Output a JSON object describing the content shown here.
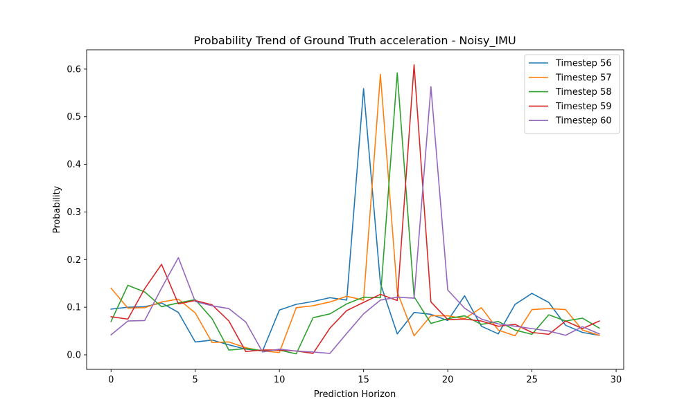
{
  "chart_data": {
    "type": "line",
    "title": "Probability Trend of Ground Truth acceleration - Noisy_IMU",
    "xlabel": "Prediction Horizon",
    "ylabel": "Probability",
    "xlim": [
      -1.45,
      30.45
    ],
    "ylim": [
      -0.0305,
      0.6405
    ],
    "xticks": [
      0,
      5,
      10,
      15,
      20,
      25,
      30
    ],
    "yticks": [
      0.0,
      0.1,
      0.2,
      0.3,
      0.4,
      0.5,
      0.6
    ],
    "grid": false,
    "legend_position": "top-right",
    "x": [
      0,
      1,
      2,
      3,
      4,
      5,
      6,
      7,
      8,
      9,
      10,
      11,
      12,
      13,
      14,
      15,
      16,
      17,
      18,
      19,
      20,
      21,
      22,
      23,
      24,
      25,
      26,
      27,
      28,
      29
    ],
    "series": [
      {
        "name": "Timestep 56",
        "color": "#1f77b4",
        "values": [
          0.096,
          0.1,
          0.101,
          0.109,
          0.089,
          0.027,
          0.031,
          0.021,
          0.012,
          0.008,
          0.094,
          0.106,
          0.112,
          0.12,
          0.115,
          0.559,
          0.15,
          0.044,
          0.089,
          0.085,
          0.072,
          0.124,
          0.06,
          0.044,
          0.106,
          0.129,
          0.11,
          0.062,
          0.047,
          0.041
        ]
      },
      {
        "name": "Timestep 57",
        "color": "#ff7f0e",
        "values": [
          0.14,
          0.098,
          0.099,
          0.111,
          0.117,
          0.088,
          0.026,
          0.027,
          0.015,
          0.008,
          0.005,
          0.099,
          0.103,
          0.111,
          0.123,
          0.115,
          0.589,
          0.132,
          0.04,
          0.082,
          0.082,
          0.076,
          0.099,
          0.052,
          0.04,
          0.095,
          0.097,
          0.095,
          0.052,
          0.041
        ]
      },
      {
        "name": "Timestep 58",
        "color": "#2ca02c",
        "values": [
          0.07,
          0.146,
          0.132,
          0.101,
          0.109,
          0.116,
          0.076,
          0.01,
          0.013,
          0.009,
          0.01,
          0.002,
          0.078,
          0.086,
          0.107,
          0.121,
          0.12,
          0.592,
          0.122,
          0.066,
          0.076,
          0.082,
          0.064,
          0.07,
          0.052,
          0.043,
          0.084,
          0.071,
          0.077,
          0.056
        ]
      },
      {
        "name": "Timestep 59",
        "color": "#d62728",
        "values": [
          0.08,
          0.075,
          0.139,
          0.19,
          0.107,
          0.114,
          0.105,
          0.071,
          0.007,
          0.01,
          0.01,
          0.008,
          0.003,
          0.056,
          0.093,
          0.11,
          0.127,
          0.114,
          0.609,
          0.111,
          0.074,
          0.075,
          0.071,
          0.06,
          0.064,
          0.047,
          0.043,
          0.071,
          0.055,
          0.071
        ]
      },
      {
        "name": "Timestep 60",
        "color": "#9467bd",
        "values": [
          0.042,
          0.071,
          0.072,
          0.14,
          0.204,
          0.112,
          0.103,
          0.097,
          0.069,
          0.006,
          0.012,
          0.008,
          0.006,
          0.003,
          0.045,
          0.086,
          0.115,
          0.121,
          0.119,
          0.563,
          0.136,
          0.098,
          0.075,
          0.065,
          0.06,
          0.055,
          0.05,
          0.041,
          0.059,
          0.044
        ]
      }
    ]
  }
}
